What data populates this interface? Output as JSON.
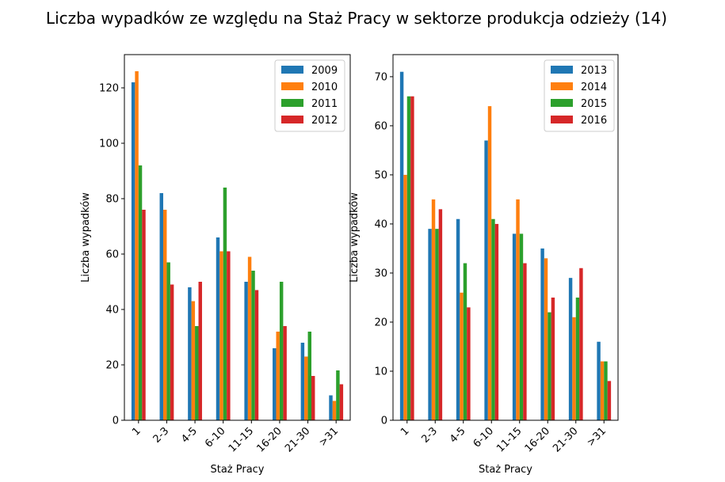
{
  "title": "Liczba wypadków ze względu na Staż Pracy w sektorze produkcja odzieży  (14)",
  "chart_data": [
    {
      "type": "bar",
      "categories": [
        "1",
        "2-3",
        "4-5",
        "6-10",
        "11-15",
        "16-20",
        "21-30",
        ">31"
      ],
      "series": [
        {
          "name": "2009",
          "values": [
            122,
            82,
            48,
            66,
            50,
            26,
            28,
            9
          ]
        },
        {
          "name": "2010",
          "values": [
            126,
            76,
            43,
            61,
            59,
            32,
            23,
            7
          ]
        },
        {
          "name": "2011",
          "values": [
            92,
            57,
            34,
            84,
            54,
            50,
            32,
            18
          ]
        },
        {
          "name": "2012",
          "values": [
            76,
            49,
            50,
            61,
            47,
            34,
            16,
            13
          ]
        }
      ],
      "colors": [
        "#1f77b4",
        "#ff7f0e",
        "#2ca02c",
        "#d62728"
      ],
      "xlabel": "Staż Pracy",
      "ylabel": "Liczba wypadków",
      "ylim": [
        0,
        132
      ],
      "yticks": [
        0,
        20,
        40,
        60,
        80,
        100,
        120
      ],
      "legend": "top-right",
      "grid": false
    },
    {
      "type": "bar",
      "categories": [
        "1",
        "2-3",
        "4-5",
        "6-10",
        "11-15",
        "16-20",
        "21-30",
        ">31"
      ],
      "series": [
        {
          "name": "2013",
          "values": [
            71,
            39,
            41,
            57,
            38,
            35,
            29,
            16
          ]
        },
        {
          "name": "2014",
          "values": [
            50,
            45,
            26,
            64,
            45,
            33,
            21,
            12
          ]
        },
        {
          "name": "2015",
          "values": [
            66,
            39,
            32,
            41,
            38,
            22,
            25,
            12
          ]
        },
        {
          "name": "2016",
          "values": [
            66,
            43,
            23,
            40,
            32,
            25,
            31,
            8
          ]
        }
      ],
      "colors": [
        "#1f77b4",
        "#ff7f0e",
        "#2ca02c",
        "#d62728"
      ],
      "xlabel": "Staż Pracy",
      "ylabel": "Liczba wypadków",
      "ylim": [
        0,
        74.5
      ],
      "yticks": [
        0,
        10,
        20,
        30,
        40,
        50,
        60,
        70
      ],
      "legend": "top-right",
      "grid": false
    }
  ]
}
